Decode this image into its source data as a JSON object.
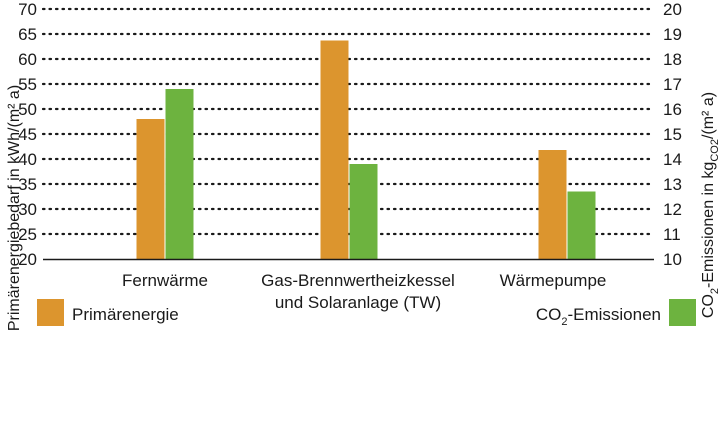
{
  "chart_data": {
    "type": "bar",
    "categories": [
      [
        "Fernwärme"
      ],
      [
        "Gas-Brennwertheizkessel",
        "und Solaranlage (TW)"
      ],
      [
        "Wärmepumpe"
      ]
    ],
    "series": [
      {
        "name": "Primärenergie",
        "axis": "left",
        "color": "#dc952e",
        "values": [
          48.0,
          63.7,
          41.8
        ]
      },
      {
        "name": "CO₂-Emissionen",
        "axis": "right",
        "color": "#6db33f",
        "values": [
          16.8,
          13.8,
          12.7
        ]
      }
    ],
    "y_left": {
      "label": "Primärenergiebedarf  in kWh/(m² a)",
      "ylim": [
        20,
        70
      ],
      "ticks": [
        "20",
        "25",
        "30",
        "35",
        "40",
        "45",
        "50",
        "55",
        "60",
        "65",
        "70"
      ]
    },
    "y_right": {
      "label_parts": [
        "CO",
        "2",
        "-Emissionen in kg",
        "CO2",
        "/(m² a)"
      ],
      "ylim": [
        10,
        20
      ],
      "ticks": [
        "10",
        "11",
        "12",
        "13",
        "14",
        "15",
        "16",
        "17",
        "18",
        "19",
        "20"
      ]
    },
    "grid": "dotted-horizontal",
    "legend": {
      "placement": "bottom",
      "items": [
        {
          "text": "Primärenergie",
          "sub": ""
        },
        {
          "prefix": "CO",
          "sub": "2",
          "suffix": "-Emissionen"
        }
      ]
    }
  }
}
